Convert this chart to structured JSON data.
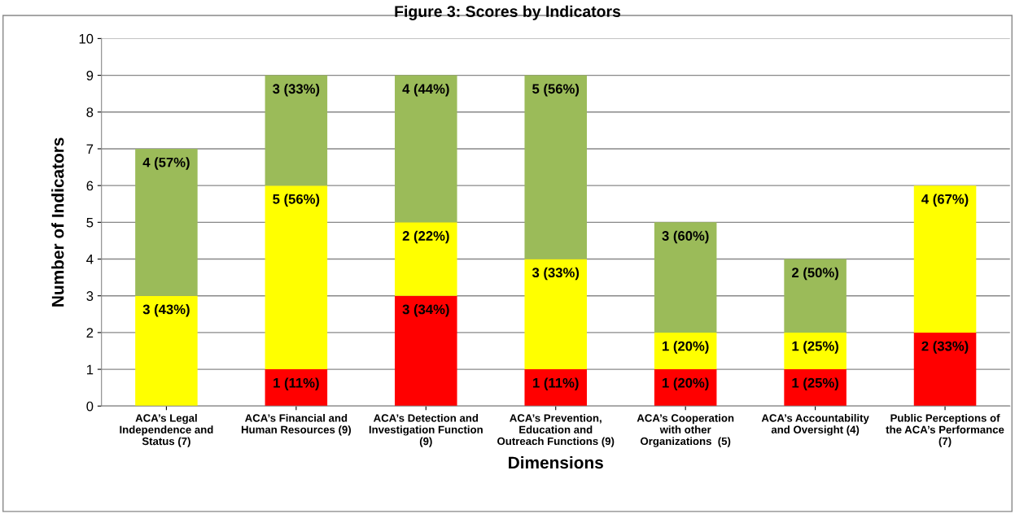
{
  "chart_data": {
    "type": "bar",
    "stacked": true,
    "title": "Figure 3: Scores by Indicators",
    "xlabel": "Dimensions",
    "ylabel": "Number of Indicators",
    "categories": [
      "ACA’s Legal\nIndependence and\nStatus (7)",
      "ACA’s Financial and\nHuman Resources (9)",
      "ACA’s Detection and\nInvestigation Function\n(9)",
      "ACA’s Prevention,\nEducation and\nOutreach Functions (9)",
      "ACA’s Cooperation\nwith other\nOrganizations  (5)",
      "ACA’s Accountability\nand Oversight (4)",
      "Public Perceptions of\nthe ACA’s Performance\n(7)"
    ],
    "series": [
      {
        "color": "#ff0000",
        "values": [
          0,
          1,
          3,
          1,
          1,
          1,
          2
        ],
        "value_labels": [
          null,
          "1 (11%)",
          "3 (34%)",
          "1 (11%)",
          "1 (20%)",
          "1 (25%)",
          "2 (33%)"
        ]
      },
      {
        "color": "#ffff00",
        "values": [
          3,
          5,
          2,
          3,
          1,
          1,
          4
        ],
        "value_labels": [
          "3 (43%)",
          "5 (56%)",
          "2 (22%)",
          "3 (33%)",
          "1 (20%)",
          "1 (25%)",
          "4 (67%)"
        ]
      },
      {
        "color": "#9bbb59",
        "values": [
          4,
          3,
          4,
          5,
          3,
          2,
          0
        ],
        "value_labels": [
          "4 (57%)",
          "3 (33%)",
          "4 (44%)",
          "5 (56%)",
          "3 (60%)",
          "2 (50%)",
          null
        ]
      }
    ],
    "ylim": [
      0,
      10
    ],
    "yticks": [
      0,
      1,
      2,
      3,
      4,
      5,
      6,
      7,
      8,
      9,
      10
    ],
    "grid": "y",
    "legend": false
  }
}
